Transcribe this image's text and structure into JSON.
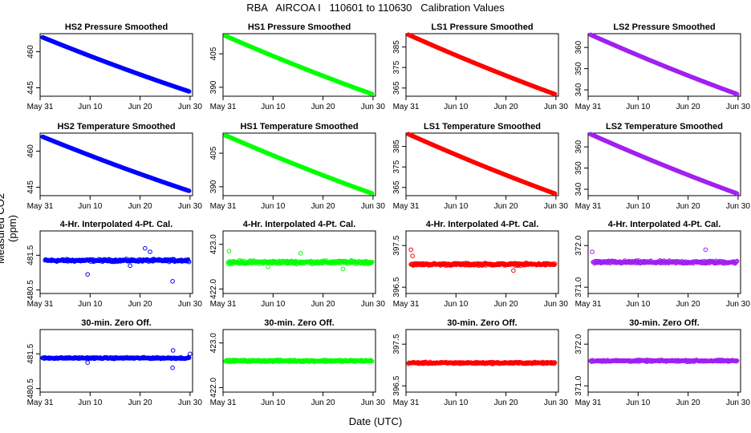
{
  "page": {
    "title": "RBA   AIRCOA I   110601 to 110630   Calibration Values",
    "ylabel": "Measured CO2 (ppm)",
    "xlabel": "Date (UTC)"
  },
  "colors": {
    "HS2": "#0000ff",
    "HS1": "#00ff00",
    "LS1": "#ff0000",
    "LS2": "#a020f0"
  },
  "chart_data": [
    {
      "type": "scatter",
      "title": "HS2 Pressure Smoothed",
      "series_key": "HS2",
      "kind": "trend",
      "start": 466.0,
      "end": 443.5,
      "ylim": [
        441.5,
        467.5
      ],
      "yticks": [
        "445",
        "460"
      ],
      "ytick_values": [
        445,
        460
      ],
      "xlim": [
        0,
        30.5
      ],
      "xticks": [
        "May 31",
        "Jun 10",
        "Jun 20",
        "Jun 30"
      ],
      "xtick_values": [
        0,
        10,
        20,
        30
      ],
      "x_range": [
        0.5,
        29.8
      ]
    },
    {
      "type": "scatter",
      "title": "HS1 Pressure Smoothed",
      "series_key": "HS1",
      "kind": "trend",
      "start": 413.0,
      "end": 387.0,
      "ylim": [
        386.0,
        414.0
      ],
      "yticks": [
        "390",
        "405"
      ],
      "ytick_values": [
        390,
        405
      ],
      "xlim": [
        0,
        30.5
      ],
      "xticks": [
        "May 31",
        "Jun 10",
        "Jun 20",
        "Jun 30"
      ],
      "xtick_values": [
        0,
        10,
        20,
        30
      ],
      "x_range": [
        0.5,
        29.8
      ]
    },
    {
      "type": "scatter",
      "title": "LS1 Pressure Smoothed",
      "series_key": "LS1",
      "kind": "trend",
      "start": 391.0,
      "end": 362.0,
      "ylim": [
        361.0,
        391.5
      ],
      "yticks": [
        "365",
        "375",
        "385"
      ],
      "ytick_values": [
        365,
        375,
        385
      ],
      "xlim": [
        0,
        30.5
      ],
      "xticks": [
        "May 31",
        "Jun 10",
        "Jun 20",
        "Jun 30"
      ],
      "xtick_values": [
        0,
        10,
        20,
        30
      ],
      "x_range": [
        0.5,
        29.8
      ]
    },
    {
      "type": "scatter",
      "title": "LS2 Pressure Smoothed",
      "series_key": "LS2",
      "kind": "trend",
      "start": 366.0,
      "end": 338.0,
      "ylim": [
        337.0,
        366.5
      ],
      "yticks": [
        "340",
        "350",
        "360"
      ],
      "ytick_values": [
        340,
        350,
        360
      ],
      "xlim": [
        0,
        30.5
      ],
      "xticks": [
        "May 31",
        "Jun 10",
        "Jun 20",
        "Jun 30"
      ],
      "xtick_values": [
        0,
        10,
        20,
        30
      ],
      "x_range": [
        0.5,
        29.8
      ]
    },
    {
      "type": "scatter",
      "title": "HS2 Temperature Smoothed",
      "series_key": "HS2",
      "kind": "trend",
      "start": 466.0,
      "end": 443.5,
      "ylim": [
        441.5,
        467.5
      ],
      "yticks": [
        "445",
        "460"
      ],
      "ytick_values": [
        445,
        460
      ],
      "xlim": [
        0,
        30.5
      ],
      "xticks": [
        "May 31",
        "Jun 10",
        "Jun 20",
        "Jun 30"
      ],
      "xtick_values": [
        0,
        10,
        20,
        30
      ],
      "x_range": [
        0.5,
        29.8
      ]
    },
    {
      "type": "scatter",
      "title": "HS1 Temperature Smoothed",
      "series_key": "HS1",
      "kind": "trend",
      "start": 413.0,
      "end": 387.0,
      "ylim": [
        386.0,
        414.0
      ],
      "yticks": [
        "390",
        "405"
      ],
      "ytick_values": [
        390,
        405
      ],
      "xlim": [
        0,
        30.5
      ],
      "xticks": [
        "May 31",
        "Jun 10",
        "Jun 20",
        "Jun 30"
      ],
      "xtick_values": [
        0,
        10,
        20,
        30
      ],
      "x_range": [
        0.5,
        29.8
      ]
    },
    {
      "type": "scatter",
      "title": "LS1 Temperature Smoothed",
      "series_key": "LS1",
      "kind": "trend",
      "start": 391.0,
      "end": 362.0,
      "ylim": [
        361.0,
        391.5
      ],
      "yticks": [
        "365",
        "375",
        "385"
      ],
      "ytick_values": [
        365,
        375,
        385
      ],
      "xlim": [
        0,
        30.5
      ],
      "xticks": [
        "May 31",
        "Jun 10",
        "Jun 20",
        "Jun 30"
      ],
      "xtick_values": [
        0,
        10,
        20,
        30
      ],
      "x_range": [
        0.5,
        29.8
      ]
    },
    {
      "type": "scatter",
      "title": "LS2 Temperature Smoothed",
      "series_key": "LS2",
      "kind": "trend",
      "start": 366.0,
      "end": 338.0,
      "ylim": [
        337.0,
        366.5
      ],
      "yticks": [
        "340",
        "350",
        "360"
      ],
      "ytick_values": [
        340,
        350,
        360
      ],
      "xlim": [
        0,
        30.5
      ],
      "xticks": [
        "May 31",
        "Jun 10",
        "Jun 20",
        "Jun 30"
      ],
      "xtick_values": [
        0,
        10,
        20,
        30
      ],
      "x_range": [
        0.5,
        29.8
      ]
    },
    {
      "type": "scatter",
      "title": "4-Hr. Interpolated 4-Pt. Cal.",
      "series_key": "HS2",
      "kind": "flat",
      "center": 481.35,
      "noise": 0.05,
      "outliers": [
        [
          9.5,
          480.95
        ],
        [
          21.0,
          481.7
        ],
        [
          22.0,
          481.6
        ],
        [
          26.5,
          480.75
        ],
        [
          18.0,
          481.2
        ]
      ],
      "ylim": [
        480.4,
        482.2
      ],
      "yticks": [
        "480.5",
        "481.5"
      ],
      "ytick_values": [
        480.5,
        481.5
      ],
      "xlim": [
        0,
        30.5
      ],
      "xticks": [
        "May 31",
        "Jun 10",
        "Jun 20",
        "Jun 30"
      ],
      "xtick_values": [
        0,
        10,
        20,
        30
      ],
      "x_range": [
        1.0,
        29.8
      ]
    },
    {
      "type": "scatter",
      "title": "4-Hr. Interpolated 4-Pt. Cal.",
      "series_key": "HS1",
      "kind": "flat",
      "center": 422.6,
      "noise": 0.05,
      "outliers": [
        [
          1.2,
          422.85
        ],
        [
          15.5,
          422.8
        ],
        [
          24.0,
          422.45
        ],
        [
          9.0,
          422.5
        ]
      ],
      "ylim": [
        421.9,
        423.3
      ],
      "yticks": [
        "422.0",
        "423.0"
      ],
      "ytick_values": [
        422.0,
        423.0
      ],
      "xlim": [
        0,
        30.5
      ],
      "xticks": [
        "May 31",
        "Jun 10",
        "Jun 20",
        "Jun 30"
      ],
      "xtick_values": [
        0,
        10,
        20,
        30
      ],
      "x_range": [
        1.0,
        29.8
      ]
    },
    {
      "type": "scatter",
      "title": "4-Hr. Interpolated 4-Pt. Cal.",
      "series_key": "LS1",
      "kind": "flat",
      "center": 397.05,
      "noise": 0.04,
      "outliers": [
        [
          1.0,
          397.4
        ],
        [
          21.5,
          396.9
        ],
        [
          1.3,
          397.25
        ]
      ],
      "ylim": [
        396.35,
        397.85
      ],
      "yticks": [
        "396.5",
        "397.5"
      ],
      "ytick_values": [
        396.5,
        397.5
      ],
      "xlim": [
        0,
        30.5
      ],
      "xticks": [
        "May 31",
        "Jun 10",
        "Jun 20",
        "Jun 30"
      ],
      "xtick_values": [
        0,
        10,
        20,
        30
      ],
      "x_range": [
        1.0,
        29.8
      ]
    },
    {
      "type": "scatter",
      "title": "4-Hr. Interpolated 4-Pt. Cal.",
      "series_key": "LS2",
      "kind": "flat",
      "center": 371.6,
      "noise": 0.05,
      "outliers": [
        [
          0.8,
          371.85
        ],
        [
          23.5,
          371.9
        ]
      ],
      "ylim": [
        370.85,
        372.35
      ],
      "yticks": [
        "371.0",
        "372.0"
      ],
      "ytick_values": [
        371.0,
        372.0
      ],
      "xlim": [
        0,
        30.5
      ],
      "xticks": [
        "May 31",
        "Jun 10",
        "Jun 20",
        "Jun 30"
      ],
      "xtick_values": [
        0,
        10,
        20,
        30
      ],
      "x_range": [
        1.0,
        29.8
      ]
    },
    {
      "type": "scatter",
      "title": "30-min. Zero Off.",
      "series_key": "HS2",
      "kind": "flat",
      "center": 481.38,
      "noise": 0.03,
      "outliers": [
        [
          26.5,
          481.1
        ],
        [
          26.6,
          481.6
        ],
        [
          9.5,
          481.25
        ],
        [
          30.0,
          481.5
        ]
      ],
      "ylim": [
        480.4,
        482.2
      ],
      "yticks": [
        "480.5",
        "481.5"
      ],
      "ytick_values": [
        480.5,
        481.5
      ],
      "xlim": [
        0,
        30.5
      ],
      "xticks": [
        "May 31",
        "Jun 10",
        "Jun 20",
        "Jun 30"
      ],
      "xtick_values": [
        0,
        10,
        20,
        30
      ],
      "x_range": [
        0.5,
        29.8
      ]
    },
    {
      "type": "scatter",
      "title": "30-min. Zero Off.",
      "series_key": "HS1",
      "kind": "flat",
      "center": 422.6,
      "noise": 0.03,
      "outliers": [],
      "ylim": [
        421.9,
        423.3
      ],
      "yticks": [
        "422.0",
        "423.0"
      ],
      "ytick_values": [
        422.0,
        423.0
      ],
      "xlim": [
        0,
        30.5
      ],
      "xticks": [
        "May 31",
        "Jun 10",
        "Jun 20",
        "Jun 30"
      ],
      "xtick_values": [
        0,
        10,
        20,
        30
      ],
      "x_range": [
        0.5,
        29.8
      ]
    },
    {
      "type": "scatter",
      "title": "30-min. Zero Off.",
      "series_key": "LS1",
      "kind": "flat",
      "center": 397.05,
      "noise": 0.03,
      "outliers": [],
      "ylim": [
        396.35,
        397.85
      ],
      "yticks": [
        "396.5",
        "397.5"
      ],
      "ytick_values": [
        396.5,
        397.5
      ],
      "xlim": [
        0,
        30.5
      ],
      "xticks": [
        "May 31",
        "Jun 10",
        "Jun 20",
        "Jun 30"
      ],
      "xtick_values": [
        0,
        10,
        20,
        30
      ],
      "x_range": [
        0.5,
        29.8
      ]
    },
    {
      "type": "scatter",
      "title": "30-min. Zero Off.",
      "series_key": "LS2",
      "kind": "flat",
      "center": 371.6,
      "noise": 0.03,
      "outliers": [],
      "ylim": [
        370.85,
        372.35
      ],
      "yticks": [
        "371.0",
        "372.0"
      ],
      "ytick_values": [
        371.0,
        372.0
      ],
      "xlim": [
        0,
        30.5
      ],
      "xticks": [
        "May 31",
        "Jun 10",
        "Jun 20",
        "Jun 30"
      ],
      "xtick_values": [
        0,
        10,
        20,
        30
      ],
      "x_range": [
        0.5,
        29.8
      ]
    }
  ]
}
